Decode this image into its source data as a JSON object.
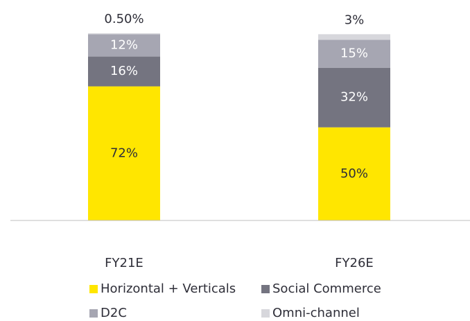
{
  "chart_data": {
    "type": "stacked_bar",
    "categories": [
      "FY21E",
      "FY26E"
    ],
    "series": [
      {
        "name": "Horizontal + Verticals",
        "color": "#ffe600",
        "values": [
          72,
          50
        ],
        "value_labels": [
          "72%",
          "50%"
        ]
      },
      {
        "name": "Social Commerce",
        "color": "#747480",
        "values": [
          16,
          32
        ],
        "value_labels": [
          "16%",
          "32%"
        ]
      },
      {
        "name": "D2C",
        "color": "#a6a6b2",
        "values": [
          12,
          15
        ],
        "value_labels": [
          "12%",
          "15%"
        ]
      },
      {
        "name": "Omni-channel",
        "color": "#d7d7dc",
        "values": [
          0.5,
          3
        ],
        "value_labels": [
          "0.50%",
          "3%"
        ]
      }
    ]
  }
}
